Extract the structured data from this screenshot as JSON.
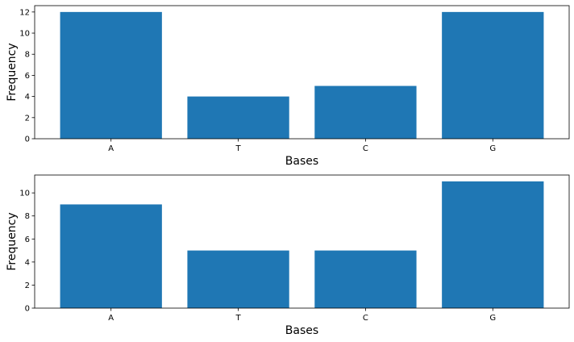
{
  "chart_data": [
    {
      "type": "bar",
      "categories": [
        "A",
        "T",
        "C",
        "G"
      ],
      "values": [
        12,
        4,
        5,
        12
      ],
      "xlabel": "Bases",
      "ylabel": "Frequency",
      "ylim": [
        0,
        12.6
      ],
      "yticks": [
        0,
        2,
        4,
        6,
        8,
        10,
        12
      ],
      "bar_color": "#1f77b4",
      "grid": false
    },
    {
      "type": "bar",
      "categories": [
        "A",
        "T",
        "C",
        "G"
      ],
      "values": [
        9,
        5,
        5,
        11
      ],
      "xlabel": "Bases",
      "ylabel": "Frequency",
      "ylim": [
        0,
        11.55
      ],
      "yticks": [
        0,
        2,
        4,
        6,
        8,
        10
      ],
      "bar_color": "#1f77b4",
      "grid": false
    }
  ]
}
